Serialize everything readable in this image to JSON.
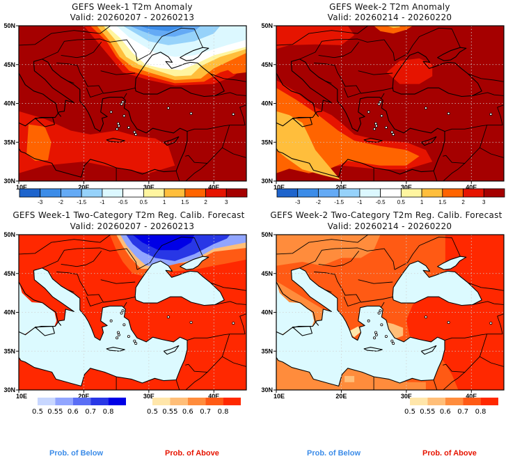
{
  "panels": [
    {
      "id": "week1-anomaly",
      "title": "GEFS Week-1 T2m Anomaly",
      "valid": "Valid: 20260207 - 20260213",
      "type": "anomaly"
    },
    {
      "id": "week2-anomaly",
      "title": "GEFS Week-2 T2m Anomaly",
      "valid": "Valid: 20260214 - 20260220",
      "type": "anomaly"
    },
    {
      "id": "week1-prob",
      "title": "GEFS Week-1 Two-Category T2m Reg. Calib. Forecast",
      "valid": "Valid: 20260207 - 20260213",
      "type": "prob"
    },
    {
      "id": "week2-prob",
      "title": "GEFS Week-2 Two-Category T2m Reg. Calib. Forecast",
      "valid": "Valid: 20260214 - 20260220",
      "type": "prob"
    }
  ],
  "axes": {
    "lat_labels": [
      "50N",
      "45N",
      "40N",
      "35N",
      "30N"
    ],
    "lon_labels": [
      "10E",
      "20E",
      "30E",
      "40E"
    ]
  },
  "anomaly_colorbar": {
    "labels": [
      "-3",
      "-2",
      "-1.5",
      "-1",
      "-0.5",
      "0.5",
      "1",
      "1.5",
      "2",
      "3"
    ],
    "colors": [
      "#1e64cc",
      "#3c8ce8",
      "#64aaf5",
      "#96d2fa",
      "#dcf8ff",
      "#ffffff",
      "#fff5a0",
      "#ffbe3c",
      "#ff6400",
      "#e61400",
      "#a50000"
    ]
  },
  "prob_below_colorbar": {
    "labels": [
      "0.5",
      "0.55",
      "0.6",
      "0.7",
      "0.8"
    ],
    "colors": [
      "#c8d7ff",
      "#91a5ff",
      "#5a6ef5",
      "#2837e6",
      "#0000e6"
    ]
  },
  "prob_above_colorbar": {
    "labels": [
      "0.5",
      "0.55",
      "0.6",
      "0.7",
      "0.8"
    ],
    "colors": [
      "#ffe6aa",
      "#ffbe78",
      "#ff8c3c",
      "#ff5a14",
      "#ff2800"
    ]
  },
  "footer": {
    "prob_below": "Prob. of Below",
    "prob_above": "Prob. of Above",
    "below_color": "#3c8ce8",
    "above_color": "#e61400"
  },
  "sea_color": "#dcfaff"
}
